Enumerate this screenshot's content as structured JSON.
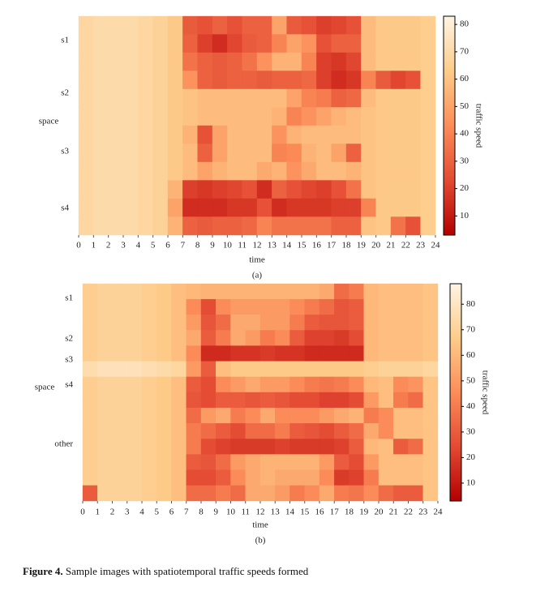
{
  "chart_data": [
    {
      "type": "heatmap",
      "panel_label": "(a)",
      "x_label": "time",
      "y_label": "space",
      "y_categories": [
        "s1",
        "s2",
        "s3",
        "s4"
      ],
      "colorbar_label": "traffic speed",
      "xlim": [
        0,
        24
      ],
      "xticks": [
        0,
        1,
        2,
        3,
        4,
        5,
        6,
        7,
        8,
        9,
        10,
        11,
        12,
        13,
        14,
        15,
        16,
        17,
        18,
        19,
        20,
        21,
        22,
        23,
        24
      ],
      "zlim": [
        3,
        83
      ],
      "zticks": [
        10,
        20,
        30,
        40,
        50,
        60,
        70,
        80
      ],
      "colormap": [
        "#b30000",
        "#e34a33",
        "#fc8d59",
        "#fdcc8a",
        "#fef4e4"
      ],
      "z": [
        [
          68,
          70,
          70,
          70,
          68,
          66,
          62,
          28,
          25,
          30,
          25,
          30,
          30,
          50,
          28,
          25,
          20,
          22,
          25,
          58,
          62,
          62,
          62,
          64
        ],
        [
          68,
          70,
          70,
          70,
          68,
          66,
          62,
          30,
          20,
          15,
          22,
          28,
          30,
          40,
          50,
          45,
          25,
          30,
          30,
          58,
          62,
          62,
          62,
          64
        ],
        [
          68,
          70,
          70,
          70,
          68,
          66,
          62,
          35,
          30,
          28,
          30,
          35,
          45,
          55,
          55,
          40,
          20,
          18,
          22,
          58,
          62,
          62,
          62,
          64
        ],
        [
          68,
          70,
          70,
          70,
          68,
          66,
          62,
          45,
          30,
          28,
          30,
          30,
          28,
          30,
          30,
          32,
          20,
          15,
          18,
          40,
          28,
          22,
          25,
          64
        ],
        [
          68,
          70,
          70,
          70,
          68,
          66,
          62,
          60,
          58,
          58,
          58,
          58,
          58,
          58,
          50,
          40,
          38,
          30,
          32,
          58,
          62,
          62,
          62,
          64
        ],
        [
          68,
          70,
          70,
          70,
          68,
          66,
          62,
          60,
          58,
          58,
          58,
          58,
          58,
          55,
          40,
          45,
          50,
          55,
          58,
          60,
          62,
          62,
          62,
          64
        ],
        [
          68,
          70,
          70,
          70,
          68,
          66,
          62,
          55,
          25,
          50,
          58,
          58,
          58,
          45,
          55,
          58,
          58,
          58,
          58,
          60,
          62,
          62,
          62,
          64
        ],
        [
          68,
          70,
          70,
          70,
          68,
          66,
          62,
          58,
          30,
          50,
          58,
          58,
          58,
          40,
          42,
          55,
          58,
          50,
          30,
          60,
          62,
          62,
          62,
          64
        ],
        [
          68,
          70,
          70,
          70,
          68,
          66,
          62,
          58,
          50,
          55,
          58,
          58,
          52,
          55,
          45,
          52,
          58,
          58,
          55,
          60,
          62,
          62,
          62,
          64
        ],
        [
          68,
          70,
          70,
          70,
          68,
          66,
          55,
          20,
          18,
          20,
          22,
          25,
          15,
          30,
          25,
          22,
          20,
          25,
          35,
          60,
          62,
          62,
          62,
          64
        ],
        [
          68,
          70,
          70,
          70,
          68,
          66,
          50,
          15,
          15,
          15,
          18,
          18,
          25,
          15,
          18,
          18,
          18,
          20,
          20,
          40,
          62,
          62,
          62,
          64
        ],
        [
          68,
          70,
          70,
          70,
          68,
          66,
          55,
          30,
          28,
          30,
          30,
          32,
          40,
          35,
          35,
          35,
          35,
          30,
          30,
          60,
          62,
          35,
          25,
          64
        ]
      ]
    },
    {
      "type": "heatmap",
      "panel_label": "(b)",
      "x_label": "time",
      "y_label": "space",
      "y_categories": [
        "s1",
        "s2",
        "s3",
        "s4",
        "other"
      ],
      "colorbar_label": "traffic speed",
      "xlim": [
        0,
        24
      ],
      "xticks": [
        0,
        1,
        2,
        3,
        4,
        5,
        6,
        7,
        8,
        9,
        10,
        11,
        12,
        13,
        14,
        15,
        16,
        17,
        18,
        19,
        20,
        21,
        22,
        23,
        24
      ],
      "zlim": [
        3,
        88
      ],
      "zticks": [
        10,
        20,
        30,
        40,
        50,
        60,
        70,
        80
      ],
      "colormap": [
        "#b30000",
        "#e34a33",
        "#fc8d59",
        "#fdcc8a",
        "#fef4e4"
      ],
      "z": [
        [
          68,
          70,
          70,
          70,
          68,
          66,
          62,
          60,
          58,
          58,
          58,
          58,
          58,
          58,
          58,
          58,
          55,
          35,
          40,
          60,
          62,
          62,
          62,
          64
        ],
        [
          68,
          70,
          70,
          70,
          68,
          66,
          62,
          45,
          25,
          45,
          50,
          50,
          50,
          50,
          45,
          40,
          35,
          28,
          30,
          60,
          62,
          62,
          62,
          64
        ],
        [
          68,
          70,
          70,
          70,
          68,
          66,
          62,
          50,
          28,
          35,
          55,
          55,
          50,
          50,
          40,
          30,
          28,
          28,
          30,
          60,
          62,
          62,
          62,
          64
        ],
        [
          68,
          70,
          70,
          70,
          68,
          66,
          62,
          55,
          30,
          40,
          55,
          50,
          40,
          45,
          30,
          22,
          22,
          20,
          25,
          60,
          62,
          62,
          62,
          64
        ],
        [
          68,
          70,
          70,
          70,
          68,
          66,
          62,
          45,
          15,
          15,
          18,
          18,
          20,
          18,
          18,
          15,
          15,
          15,
          15,
          60,
          62,
          62,
          62,
          64
        ],
        [
          75,
          78,
          78,
          78,
          76,
          74,
          72,
          50,
          30,
          62,
          66,
          66,
          66,
          66,
          66,
          66,
          66,
          66,
          66,
          68,
          70,
          70,
          70,
          72
        ],
        [
          68,
          70,
          70,
          70,
          68,
          66,
          62,
          30,
          25,
          45,
          50,
          55,
          50,
          50,
          45,
          40,
          38,
          40,
          45,
          60,
          62,
          45,
          48,
          64
        ],
        [
          68,
          70,
          70,
          70,
          68,
          66,
          62,
          28,
          25,
          30,
          30,
          28,
          30,
          28,
          25,
          25,
          22,
          22,
          25,
          50,
          62,
          40,
          35,
          64
        ],
        [
          68,
          70,
          70,
          70,
          68,
          66,
          62,
          35,
          50,
          55,
          40,
          45,
          55,
          45,
          45,
          45,
          50,
          55,
          58,
          40,
          45,
          62,
          62,
          64
        ],
        [
          68,
          70,
          70,
          70,
          68,
          66,
          62,
          40,
          35,
          30,
          25,
          35,
          35,
          40,
          30,
          28,
          25,
          30,
          35,
          55,
          45,
          62,
          62,
          64
        ],
        [
          68,
          70,
          70,
          70,
          68,
          66,
          62,
          40,
          25,
          22,
          20,
          20,
          20,
          22,
          20,
          20,
          20,
          22,
          30,
          60,
          62,
          30,
          35,
          64
        ],
        [
          68,
          70,
          70,
          70,
          68,
          66,
          62,
          30,
          28,
          35,
          50,
          55,
          58,
          58,
          58,
          58,
          50,
          30,
          25,
          50,
          62,
          62,
          62,
          64
        ],
        [
          68,
          70,
          70,
          70,
          68,
          66,
          62,
          25,
          25,
          30,
          45,
          55,
          58,
          55,
          55,
          55,
          45,
          20,
          22,
          40,
          62,
          62,
          62,
          64
        ],
        [
          30,
          70,
          70,
          70,
          68,
          66,
          62,
          35,
          35,
          40,
          35,
          55,
          55,
          50,
          40,
          45,
          55,
          40,
          38,
          45,
          35,
          30,
          30,
          64
        ]
      ]
    }
  ],
  "caption": {
    "label": "Figure 4.",
    "text": "Sample images with spatiotemporal traffic speeds formed"
  }
}
